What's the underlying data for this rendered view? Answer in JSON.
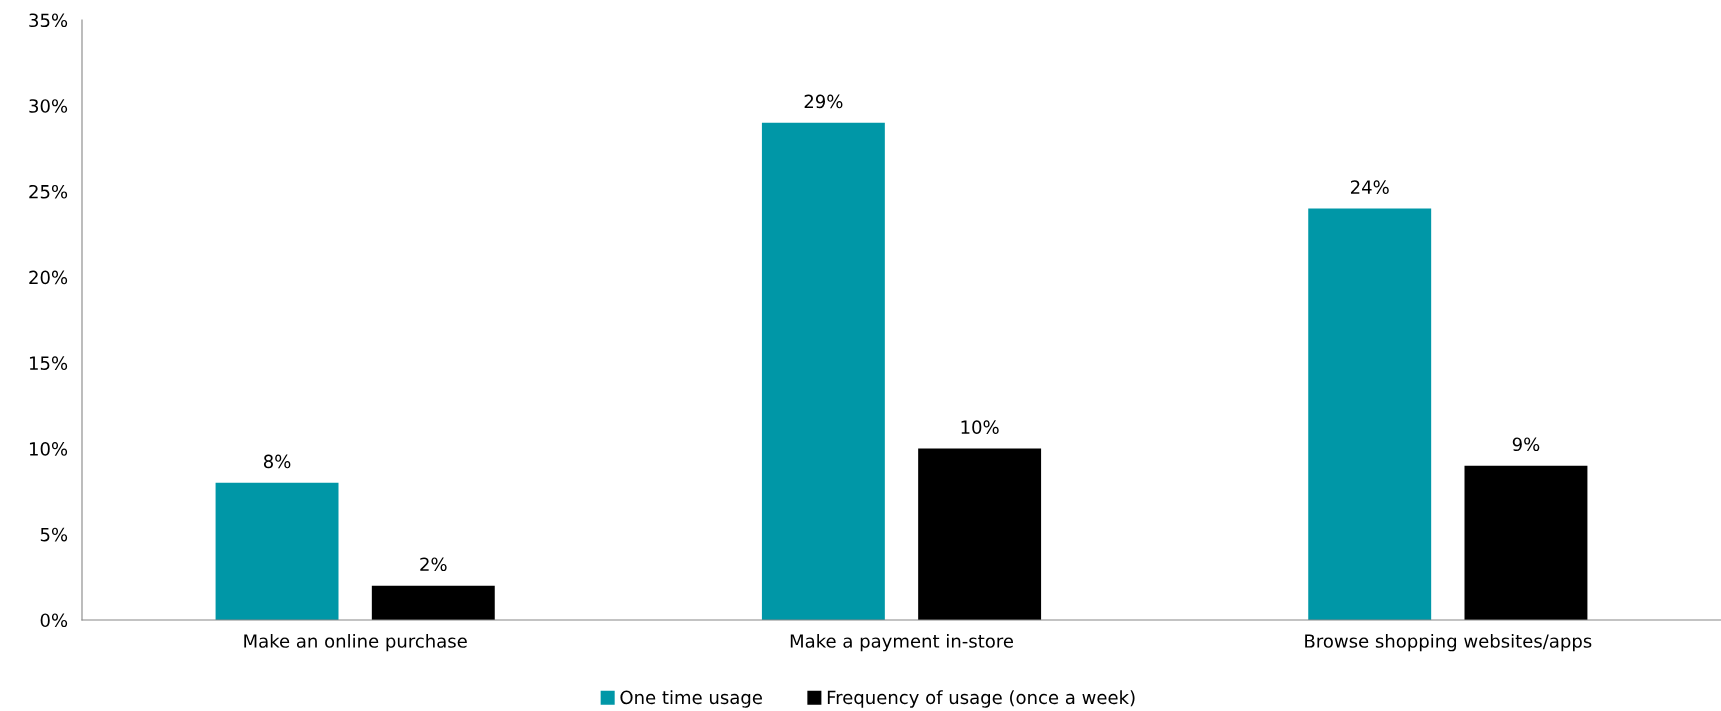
{
  "chart_data": {
    "type": "bar",
    "categories": [
      "Make an online purchase",
      "Make a payment in-store",
      "Browse shopping websites/apps"
    ],
    "series": [
      {
        "name": "One time usage",
        "color": "#0097a7",
        "values": [
          8,
          29,
          24
        ],
        "value_labels": [
          "8%",
          "29%",
          "24%"
        ]
      },
      {
        "name": "Frequency of usage (once a week)",
        "color": "#000000",
        "values": [
          2,
          10,
          9
        ],
        "value_labels": [
          "2%",
          "10%",
          "9%"
        ]
      }
    ],
    "ylim": [
      0,
      35
    ],
    "yticks": [
      {
        "value": 0,
        "label": "0%"
      },
      {
        "value": 5,
        "label": "5%"
      },
      {
        "value": 10,
        "label": "10%"
      },
      {
        "value": 15,
        "label": "15%"
      },
      {
        "value": 20,
        "label": "20%"
      },
      {
        "value": 25,
        "label": "25%"
      },
      {
        "value": 30,
        "label": "30%"
      },
      {
        "value": 35,
        "label": "35%"
      }
    ],
    "grid": false,
    "legend": "bottom"
  }
}
